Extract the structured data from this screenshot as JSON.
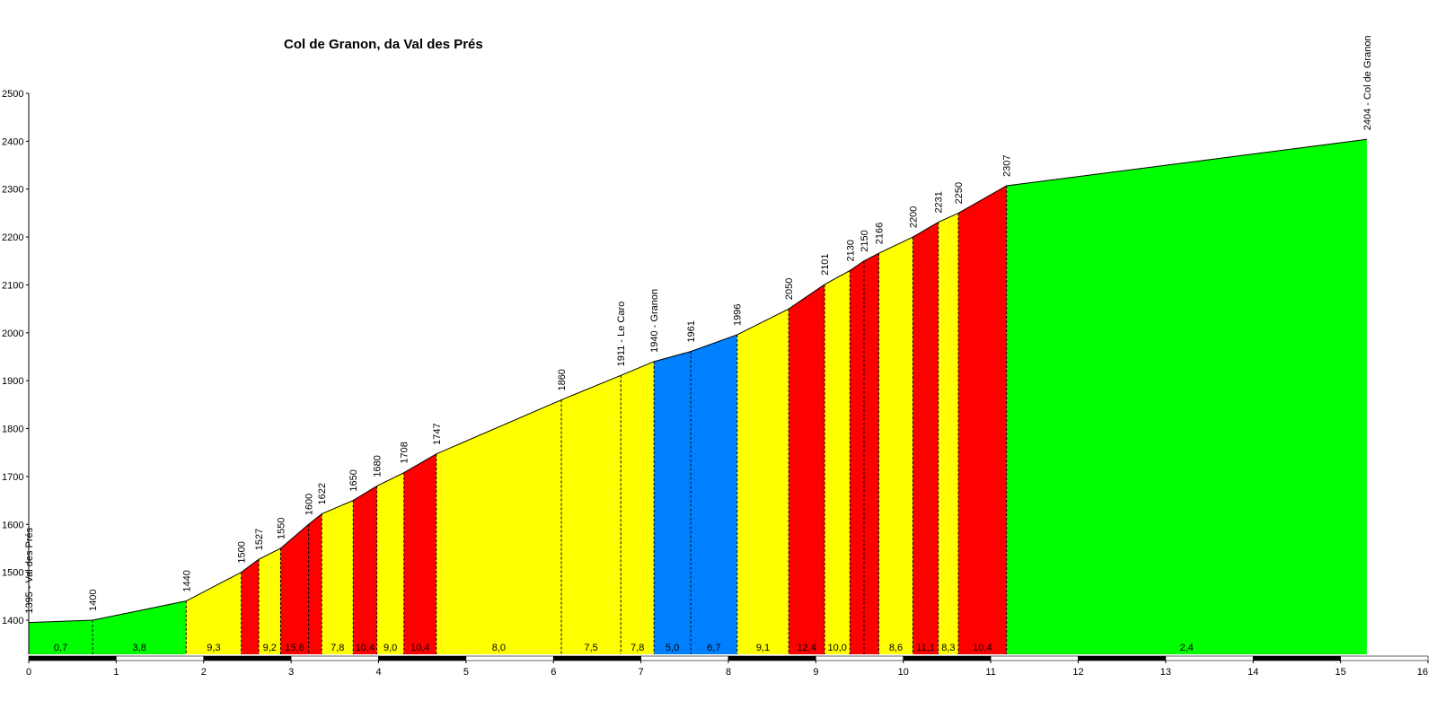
{
  "chart_data": {
    "type": "area",
    "title": "Col de Granon, da Val des Prés",
    "xlabel": "",
    "ylabel": "",
    "xlim": [
      0,
      16
    ],
    "ylim": [
      1320,
      2500
    ],
    "x_ticks": [
      "0",
      "1",
      "2",
      "3",
      "4",
      "5",
      "6",
      "7",
      "8",
      "9",
      "10",
      "11",
      "12",
      "13",
      "14",
      "15",
      "16"
    ],
    "y_ticks": [
      "1400",
      "1500",
      "1600",
      "1700",
      "1800",
      "1900",
      "2000",
      "2100",
      "2200",
      "2300",
      "2400",
      "2500"
    ],
    "points": [
      {
        "x": 0.0,
        "y": 1395,
        "label": "1395 - Val des Prés"
      },
      {
        "x": 0.73,
        "y": 1400,
        "label": "1400"
      },
      {
        "x": 1.8,
        "y": 1440,
        "label": "1440"
      },
      {
        "x": 2.43,
        "y": 1500,
        "label": "1500"
      },
      {
        "x": 2.63,
        "y": 1527,
        "label": "1527"
      },
      {
        "x": 2.88,
        "y": 1550,
        "label": "1550"
      },
      {
        "x": 3.2,
        "y": 1600,
        "label": "1600"
      },
      {
        "x": 3.35,
        "y": 1622,
        "label": "1622"
      },
      {
        "x": 3.71,
        "y": 1650,
        "label": "1650"
      },
      {
        "x": 3.98,
        "y": 1680,
        "label": "1680"
      },
      {
        "x": 4.29,
        "y": 1708,
        "label": "1708"
      },
      {
        "x": 4.66,
        "y": 1747,
        "label": "1747"
      },
      {
        "x": 6.09,
        "y": 1860,
        "label": "1860"
      },
      {
        "x": 6.77,
        "y": 1911,
        "label": "1911 - Le Caro"
      },
      {
        "x": 7.15,
        "y": 1940,
        "label": "1940 - Granon"
      },
      {
        "x": 7.57,
        "y": 1961,
        "label": "1961"
      },
      {
        "x": 8.1,
        "y": 1996,
        "label": "1996"
      },
      {
        "x": 8.69,
        "y": 2050,
        "label": "2050"
      },
      {
        "x": 9.1,
        "y": 2101,
        "label": "2101"
      },
      {
        "x": 9.39,
        "y": 2130,
        "label": "2130"
      },
      {
        "x": 9.55,
        "y": 2150,
        "label": "2150"
      },
      {
        "x": 9.72,
        "y": 2166,
        "label": "2166"
      },
      {
        "x": 10.11,
        "y": 2200,
        "label": "2200"
      },
      {
        "x": 10.4,
        "y": 2231,
        "label": "2231"
      },
      {
        "x": 10.63,
        "y": 2250,
        "label": "2250"
      },
      {
        "x": 11.18,
        "y": 2307,
        "label": "2307"
      },
      {
        "x": 15.3,
        "y": 2404,
        "label": "2404 - Col de Granon"
      }
    ],
    "segments": [
      {
        "grade": "0,7",
        "color": "#00ff00"
      },
      {
        "grade": "3,8",
        "color": "#00ff00"
      },
      {
        "grade": "9,3",
        "color": "#ffff00"
      },
      {
        "grade": "",
        "color": "#ff0000"
      },
      {
        "grade": "9,2",
        "color": "#ffff00"
      },
      {
        "grade": "15,6",
        "color": "#ff0000"
      },
      {
        "grade": "",
        "color": "#ff0000"
      },
      {
        "grade": "7,8",
        "color": "#ffff00"
      },
      {
        "grade": "10,4",
        "color": "#ff0000"
      },
      {
        "grade": "9,0",
        "color": "#ffff00"
      },
      {
        "grade": "10,4",
        "color": "#ff0000"
      },
      {
        "grade": "8,0",
        "color": "#ffff00"
      },
      {
        "grade": "7,5",
        "color": "#ffff00"
      },
      {
        "grade": "7,8",
        "color": "#ffff00"
      },
      {
        "grade": "5,0",
        "color": "#0080ff"
      },
      {
        "grade": "6,7",
        "color": "#0080ff"
      },
      {
        "grade": "9,1",
        "color": "#ffff00"
      },
      {
        "grade": "12,4",
        "color": "#ff0000"
      },
      {
        "grade": "10,0",
        "color": "#ffff00"
      },
      {
        "grade": "",
        "color": "#ff0000"
      },
      {
        "grade": "",
        "color": "#ff0000"
      },
      {
        "grade": "8,6",
        "color": "#ffff00"
      },
      {
        "grade": "11,1",
        "color": "#ff0000"
      },
      {
        "grade": "8,3",
        "color": "#ffff00"
      },
      {
        "grade": "10,4",
        "color": "#ff0000"
      },
      {
        "grade": "2,4",
        "color": "#00ff00"
      }
    ],
    "dashed_markers_at_points": [
      1,
      2,
      3,
      4,
      5,
      6,
      7,
      8,
      9,
      10,
      11,
      12,
      13,
      14,
      15,
      16,
      17,
      18,
      19,
      20,
      21,
      22,
      23,
      24,
      25
    ],
    "km_bar_colors": [
      "#000000",
      "#ffffff"
    ]
  }
}
